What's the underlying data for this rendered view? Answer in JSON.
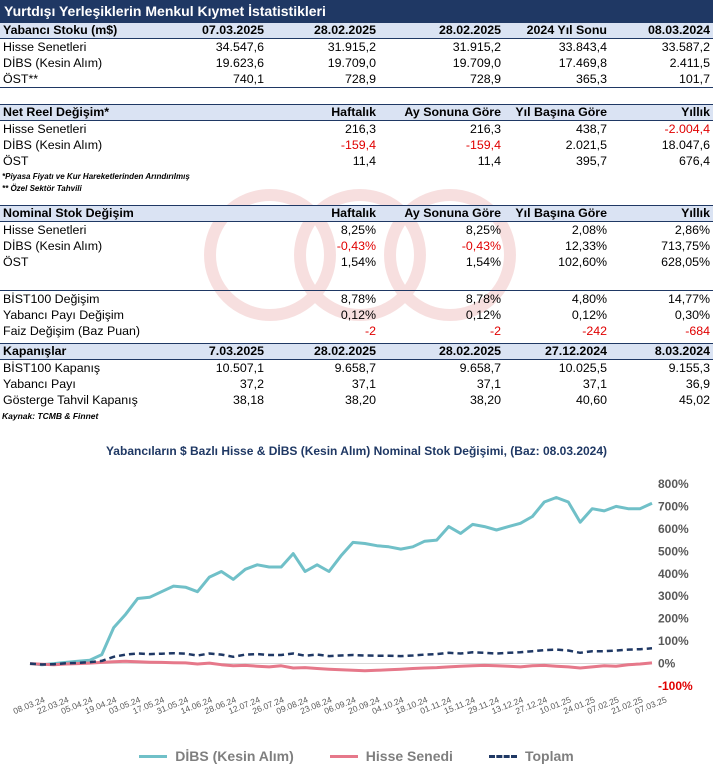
{
  "title": "Yurtdışı Yerleşiklerin Menkul Kıymet İstatistikleri",
  "t1": {
    "headers": [
      "Yabancı Stoku (m$)",
      "07.03.2025",
      "28.02.2025",
      "28.02.2025",
      "2024 Yıl Sonu",
      "08.03.2024"
    ],
    "rows": [
      [
        "Hisse Senetleri",
        "34.547,6",
        "31.915,2",
        "31.915,2",
        "33.843,4",
        "33.587,2"
      ],
      [
        "DİBS (Kesin Alım)",
        "19.623,6",
        "19.709,0",
        "19.709,0",
        "17.469,8",
        "2.411,5"
      ],
      [
        "ÖST**",
        "740,1",
        "728,9",
        "728,9",
        "365,3",
        "101,7"
      ]
    ]
  },
  "t2": {
    "headers": [
      "Net Reel Değişim*",
      "",
      "Haftalık",
      "Ay Sonuna Göre",
      "Yıl Başına Göre",
      "Yıllık"
    ],
    "rows": [
      [
        "Hisse Senetleri",
        "",
        "216,3",
        "216,3",
        "438,7",
        "-2.004,4"
      ],
      [
        "DİBS (Kesin Alım)",
        "",
        "-159,4",
        "-159,4",
        "2.021,5",
        "18.047,6"
      ],
      [
        "ÖST",
        "",
        "11,4",
        "11,4",
        "395,7",
        "676,4"
      ]
    ]
  },
  "notes": [
    "*Piyasa Fiyatı ve Kur Hareketlerinden Arındırılmış",
    "** Özel Sektör Tahvili"
  ],
  "t3": {
    "headers": [
      "Nominal Stok Değişim",
      "",
      "Haftalık",
      "Ay Sonuna Göre",
      "Yıl Başına Göre",
      "Yıllık"
    ],
    "rows": [
      [
        "Hisse Senetleri",
        "",
        "8,25%",
        "8,25%",
        "2,08%",
        "2,86%"
      ],
      [
        "DİBS (Kesin Alım)",
        "",
        "-0,43%",
        "-0,43%",
        "12,33%",
        "713,75%"
      ],
      [
        "ÖST",
        "",
        "1,54%",
        "1,54%",
        "102,60%",
        "628,05%"
      ]
    ]
  },
  "t4": {
    "rows": [
      [
        "BİST100 Değişim",
        "",
        "8,78%",
        "8,78%",
        "4,80%",
        "14,77%"
      ],
      [
        "Yabancı Payı Değişim",
        "",
        "0,12%",
        "0,12%",
        "0,12%",
        "0,30%"
      ],
      [
        "Faiz Değişim (Baz Puan)",
        "",
        "-2",
        "-2",
        "-242",
        "-684"
      ]
    ]
  },
  "t5": {
    "headers": [
      "Kapanışlar",
      "7.03.2025",
      "28.02.2025",
      "28.02.2025",
      "27.12.2024",
      "8.03.2024"
    ],
    "rows": [
      [
        "BİST100 Kapanış",
        "10.507,1",
        "9.658,7",
        "9.658,7",
        "10.025,5",
        "9.155,3"
      ],
      [
        "Yabancı Payı",
        "37,2",
        "37,1",
        "37,1",
        "37,1",
        "36,9"
      ],
      [
        "Gösterge Tahvil Kapanış",
        "38,18",
        "38,20",
        "38,20",
        "40,60",
        "45,02"
      ]
    ]
  },
  "source": "Kaynak: TCMB & Finnet",
  "chart_data": {
    "type": "line",
    "title": "Yabancıların $ Bazlı Hisse & DİBS (Kesin Alım) Nominal Stok Değişimi, (Baz: 08.03.2024)",
    "x": [
      "08.03.24",
      "15.03.24",
      "22.03.24",
      "29.03.24",
      "05.04.24",
      "12.04.24",
      "19.04.24",
      "26.04.24",
      "03.05.24",
      "10.05.24",
      "17.05.24",
      "24.05.24",
      "31.05.24",
      "07.06.24",
      "14.06.24",
      "21.06.24",
      "28.06.24",
      "05.07.24",
      "12.07.24",
      "19.07.24",
      "26.07.24",
      "02.08.24",
      "09.08.24",
      "16.08.24",
      "23.08.24",
      "30.08.24",
      "06.09.24",
      "13.09.24",
      "20.09.24",
      "27.09.24",
      "04.10.24",
      "11.10.24",
      "18.10.24",
      "25.10.24",
      "01.11.24",
      "08.11.24",
      "15.11.24",
      "22.11.24",
      "29.11.24",
      "06.12.24",
      "13.12.24",
      "20.12.24",
      "27.12.24",
      "03.01.25",
      "10.01.25",
      "17.01.25",
      "24.01.25",
      "31.01.25",
      "07.02.25",
      "14.02.25",
      "21.02.25",
      "28.02.25",
      "07.03.25"
    ],
    "x_tick_labels": [
      "08.03.24",
      "22.03.24",
      "05.04.24",
      "19.04.24",
      "03.05.24",
      "17.05.24",
      "31.05.24",
      "14.06.24",
      "28.06.24",
      "12.07.24",
      "26.07.24",
      "09.08.24",
      "23.08.24",
      "06.09.24",
      "20.09.24",
      "04.10.24",
      "18.10.24",
      "01.11.24",
      "15.11.24",
      "29.11.24",
      "13.12.24",
      "27.12.24",
      "10.01.25",
      "24.01.25",
      "07.02.25",
      "21.02.25",
      "07.03.25"
    ],
    "series": [
      {
        "name": "DİBS (Kesin Alım)",
        "color": "#70c0c8",
        "values": [
          0,
          -5,
          0,
          5,
          10,
          15,
          40,
          160,
          220,
          290,
          295,
          320,
          345,
          340,
          320,
          385,
          410,
          375,
          420,
          440,
          430,
          430,
          490,
          410,
          440,
          410,
          480,
          540,
          535,
          525,
          520,
          510,
          520,
          545,
          550,
          610,
          580,
          620,
          610,
          595,
          610,
          625,
          655,
          720,
          740,
          720,
          630,
          690,
          680,
          700,
          690,
          690,
          714
        ]
      },
      {
        "name": "Hisse Senedi",
        "color": "#e6788a",
        "values": [
          0,
          -3,
          -5,
          -2,
          0,
          2,
          5,
          8,
          10,
          8,
          6,
          5,
          4,
          3,
          -2,
          2,
          -5,
          -10,
          -8,
          -12,
          -15,
          -10,
          -20,
          -18,
          -22,
          -25,
          -28,
          -30,
          -32,
          -30,
          -28,
          -25,
          -22,
          -20,
          -18,
          -15,
          -12,
          -10,
          -8,
          -10,
          -12,
          -15,
          -10,
          -8,
          -12,
          -15,
          -20,
          -15,
          -10,
          -12,
          -5,
          -2,
          3
        ]
      },
      {
        "name": "Toplam",
        "color": "#1f3864",
        "values": [
          0,
          -4,
          -3,
          1,
          3,
          6,
          12,
          30,
          40,
          45,
          42,
          44,
          46,
          44,
          36,
          45,
          40,
          30,
          40,
          42,
          38,
          38,
          45,
          35,
          40,
          33,
          36,
          38,
          36,
          35,
          35,
          33,
          36,
          40,
          42,
          48,
          45,
          50,
          48,
          45,
          48,
          50,
          55,
          60,
          62,
          58,
          48,
          55,
          55,
          58,
          62,
          64,
          68
        ]
      }
    ],
    "y_ticks": [
      "-100%",
      "0%",
      "100%",
      "200%",
      "300%",
      "400%",
      "500%",
      "600%",
      "700%",
      "800%"
    ],
    "ylim": [
      -100,
      800
    ],
    "legend": "bottom"
  }
}
